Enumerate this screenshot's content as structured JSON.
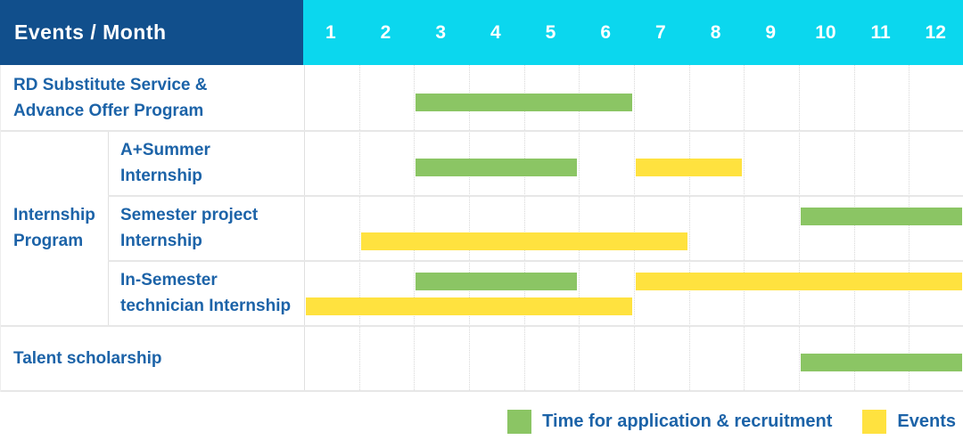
{
  "header": {
    "label": "Events / Month"
  },
  "colors": {
    "header_bg": "#114F8C",
    "months_bg": "#0BD7EE",
    "application_green": "#8BC564",
    "events_yellow": "#FFE23F",
    "label_text": "#1C63A8",
    "grid_line": "#E0E0E0"
  },
  "legend": [
    {
      "key": "green",
      "label": "Time for application & recruitment",
      "color": "#8BC564"
    },
    {
      "key": "yellow",
      "label": "Events",
      "color": "#FFE23F"
    }
  ],
  "chart_data": {
    "type": "bar",
    "subtype": "gantt",
    "title": "Events / Month",
    "x_axis": {
      "label": "Month",
      "ticks": [
        "1",
        "2",
        "3",
        "4",
        "5",
        "6",
        "7",
        "8",
        "9",
        "10",
        "11",
        "12"
      ],
      "range": [
        1,
        12
      ]
    },
    "grid": true,
    "legend_position": "bottom-right",
    "series_legend": [
      {
        "name": "Time for application & recruitment",
        "color": "#8BC564"
      },
      {
        "name": "Events",
        "color": "#FFE23F"
      }
    ],
    "group": {
      "label_lines": [
        "Internship",
        "Program"
      ],
      "label": "Internship Program",
      "row_span": [
        1,
        3
      ]
    },
    "rows": [
      {
        "label_lines": [
          "RD Substitute Service &",
          "Advance Offer Program"
        ],
        "label": "RD Substitute Service & Advance Offer Program",
        "group": null,
        "bars": [
          {
            "series": "Time for application & recruitment",
            "color": "green",
            "start_month": 3,
            "end_month": 6,
            "lane": "single"
          }
        ]
      },
      {
        "label_lines": [
          "A+Summer",
          "Internship"
        ],
        "label": "A+Summer Internship",
        "group": "Internship Program",
        "bars": [
          {
            "series": "Time for application & recruitment",
            "color": "green",
            "start_month": 3,
            "end_month": 5,
            "lane": "single"
          },
          {
            "series": "Events",
            "color": "yellow",
            "start_month": 7,
            "end_month": 8,
            "lane": "single"
          }
        ]
      },
      {
        "label_lines": [
          "Semester project",
          "Internship"
        ],
        "label": "Semester project Internship",
        "group": "Internship Program",
        "bars": [
          {
            "series": "Time for application & recruitment",
            "color": "green",
            "start_month": 10,
            "end_month": 12,
            "lane": "top"
          },
          {
            "series": "Events",
            "color": "yellow",
            "start_month": 2,
            "end_month": 7,
            "lane": "bottom"
          }
        ]
      },
      {
        "label_lines": [
          "In-Semester",
          "technician Internship"
        ],
        "label": "In-Semester technician Internship",
        "group": "Internship Program",
        "bars": [
          {
            "series": "Time for application & recruitment",
            "color": "green",
            "start_month": 3,
            "end_month": 5,
            "lane": "top"
          },
          {
            "series": "Events",
            "color": "yellow",
            "start_month": 7,
            "end_month": 12,
            "lane": "top"
          },
          {
            "series": "Events",
            "color": "yellow",
            "start_month": 1,
            "end_month": 6,
            "lane": "bottom"
          }
        ]
      },
      {
        "label_lines": [
          "Talent scholarship"
        ],
        "label": "Talent scholarship",
        "group": null,
        "bars": [
          {
            "series": "Time for application & recruitment",
            "color": "green",
            "start_month": 10,
            "end_month": 12,
            "lane": "single"
          }
        ]
      }
    ]
  }
}
